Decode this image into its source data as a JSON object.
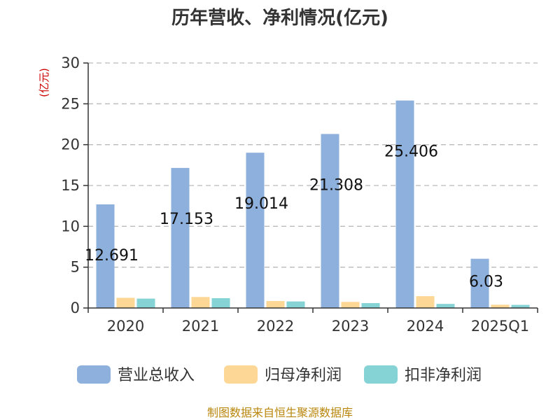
{
  "chart_data": {
    "type": "bar",
    "title": "历年营收、净利情况(亿元)",
    "unit_label": "(亿元)",
    "categories": [
      "2020",
      "2021",
      "2022",
      "2023",
      "2024",
      "2025Q1"
    ],
    "series": [
      {
        "name": "营业总收入",
        "color": "#8eb0dc",
        "values": [
          12.691,
          17.153,
          19.014,
          21.308,
          25.406,
          6.03
        ],
        "data_labels": [
          "12.691",
          "17.153",
          "19.014",
          "21.308",
          "25.406",
          "6.03"
        ]
      },
      {
        "name": "归母净利润",
        "color": "#fdd796",
        "values": [
          1.25,
          1.35,
          0.85,
          0.75,
          1.45,
          0.4
        ]
      },
      {
        "name": "扣非净利润",
        "color": "#86d3d6",
        "values": [
          1.15,
          1.2,
          0.8,
          0.6,
          0.5,
          0.38
        ]
      }
    ],
    "ylim": [
      0,
      30
    ],
    "yticks": [
      "0",
      "5",
      "10",
      "15",
      "20",
      "25",
      "30"
    ],
    "grid": true,
    "legend_position": "bottom"
  },
  "source_text": "制图数据来自恒生聚源数据库"
}
